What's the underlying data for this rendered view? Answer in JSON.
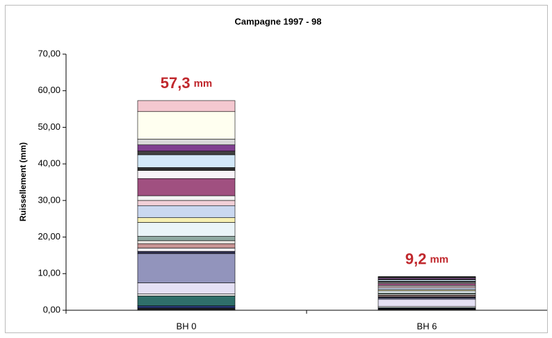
{
  "chart_data": {
    "type": "stacked_bar",
    "title": "Campagne 1997 - 98",
    "y_label": "Ruissellement (mm)",
    "categories": [
      "BH 0",
      "BH 6"
    ],
    "ylim": [
      0,
      70
    ],
    "yticks": [
      {
        "value": 0,
        "label": "0,00"
      },
      {
        "value": 10,
        "label": "10,00"
      },
      {
        "value": 20,
        "label": "20,00"
      },
      {
        "value": 30,
        "label": "30,00"
      },
      {
        "value": 40,
        "label": "40,00"
      },
      {
        "value": 50,
        "label": "50,00"
      },
      {
        "value": 60,
        "label": "60,00"
      },
      {
        "value": 70,
        "label": "70,00"
      }
    ],
    "totals": [
      57.3,
      9.2
    ],
    "total_labels": [
      "57,3",
      "9,2"
    ],
    "total_unit": "mm",
    "total_color": "#c0282d",
    "series": [
      {
        "color": "#202020",
        "values": [
          0.6,
          0.3
        ]
      },
      {
        "color": "#283878",
        "values": [
          0.6,
          0.2
        ]
      },
      {
        "color": "#2f6f6a",
        "values": [
          2.7,
          0.2
        ]
      },
      {
        "color": "#f0f0f0",
        "values": [
          0.6,
          0.3
        ]
      },
      {
        "color": "#e4e0f4",
        "values": [
          3.0,
          2.0
        ]
      },
      {
        "color": "#9294bc",
        "values": [
          8.0,
          0.3
        ]
      },
      {
        "color": "#303050",
        "values": [
          0.6,
          0.3
        ]
      },
      {
        "color": "#f4f0f8",
        "values": [
          0.9,
          0.2
        ]
      },
      {
        "color": "#c89494",
        "values": [
          1.2,
          0.3
        ]
      },
      {
        "color": "#f0ece8",
        "values": [
          0.8,
          0.3
        ]
      },
      {
        "color": "#90aaa2",
        "values": [
          1.2,
          0.3
        ]
      },
      {
        "color": "#eaf4f8",
        "values": [
          3.8,
          0.6
        ]
      },
      {
        "color": "#f6efb2",
        "values": [
          1.3,
          0.3
        ]
      },
      {
        "color": "#cad8f0",
        "values": [
          3.3,
          0.5
        ]
      },
      {
        "color": "#f2d0d8",
        "values": [
          1.4,
          0.4
        ]
      },
      {
        "color": "#f4f4f4",
        "values": [
          1.3,
          0.3
        ]
      },
      {
        "color": "#a05080",
        "values": [
          4.7,
          0.5
        ]
      },
      {
        "color": "#f8f4f8",
        "values": [
          2.2,
          0.3
        ]
      },
      {
        "color": "#303030",
        "values": [
          0.8,
          0.3
        ]
      },
      {
        "color": "#d2e8f8",
        "values": [
          3.5,
          0.4
        ]
      },
      {
        "color": "#404040",
        "values": [
          1.0,
          0.2
        ]
      },
      {
        "color": "#804090",
        "values": [
          1.7,
          0.3
        ]
      },
      {
        "color": "#d8d8d8",
        "values": [
          1.6,
          0.2
        ]
      },
      {
        "color": "#fffff0",
        "values": [
          7.5,
          0.1
        ]
      },
      {
        "color": "#f4c8d0",
        "values": [
          3.0,
          0.1
        ]
      }
    ]
  }
}
